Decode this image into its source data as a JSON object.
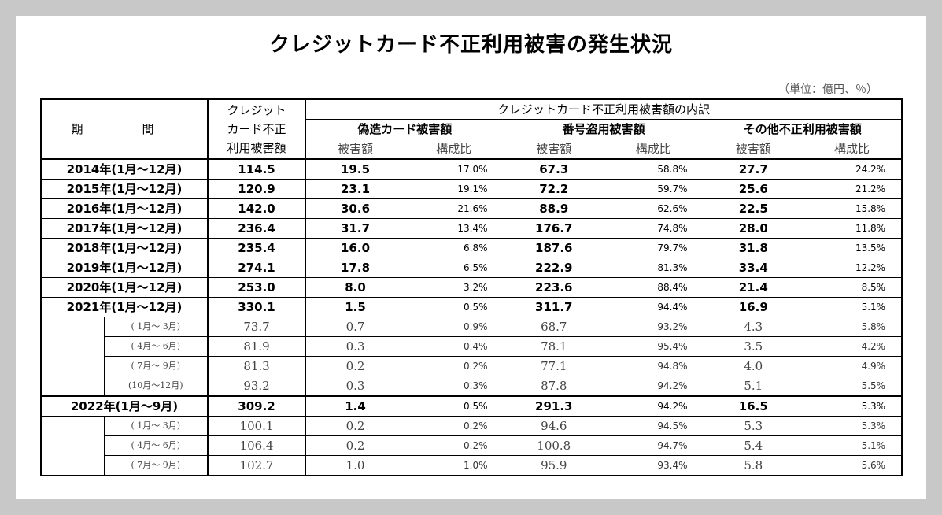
{
  "title": "クレジットカード不正利用被害の発生状況",
  "unit": "（単位：億円、％）",
  "headers": {
    "period": "期　間",
    "total_line1": "クレジット",
    "total_line2": "カード不正",
    "total_line3": "利用被害額",
    "breakdown": "クレジットカード不正利用被害額の内訳",
    "cat1": "偽造カード被害額",
    "cat2": "番号盗用被害額",
    "cat3": "その他不正利用被害額",
    "amount": "被害額",
    "ratio": "構成比"
  },
  "rows": [
    {
      "type": "year",
      "label": "2014年(1月～12月)",
      "total": "114.5",
      "a1": "19.5",
      "r1": "17.0%",
      "a2": "67.3",
      "r2": "58.8%",
      "a3": "27.7",
      "r3": "24.2%"
    },
    {
      "type": "year",
      "label": "2015年(1月～12月)",
      "total": "120.9",
      "a1": "23.1",
      "r1": "19.1%",
      "a2": "72.2",
      "r2": "59.7%",
      "a3": "25.6",
      "r3": "21.2%"
    },
    {
      "type": "year",
      "label": "2016年(1月～12月)",
      "total": "142.0",
      "a1": "30.6",
      "r1": "21.6%",
      "a2": "88.9",
      "r2": "62.6%",
      "a3": "22.5",
      "r3": "15.8%"
    },
    {
      "type": "year",
      "label": "2017年(1月～12月)",
      "total": "236.4",
      "a1": "31.7",
      "r1": "13.4%",
      "a2": "176.7",
      "r2": "74.8%",
      "a3": "28.0",
      "r3": "11.8%"
    },
    {
      "type": "year",
      "label": "2018年(1月～12月)",
      "total": "235.4",
      "a1": "16.0",
      "r1": "6.8%",
      "a2": "187.6",
      "r2": "79.7%",
      "a3": "31.8",
      "r3": "13.5%"
    },
    {
      "type": "year",
      "label": "2019年(1月～12月)",
      "total": "274.1",
      "a1": "17.8",
      "r1": "6.5%",
      "a2": "222.9",
      "r2": "81.3%",
      "a3": "33.4",
      "r3": "12.2%"
    },
    {
      "type": "year",
      "label": "2020年(1月～12月)",
      "total": "253.0",
      "a1": "8.0",
      "r1": "3.2%",
      "a2": "223.6",
      "r2": "88.4%",
      "a3": "21.4",
      "r3": "8.5%"
    },
    {
      "type": "year",
      "label": "2021年(1月～12月)",
      "total": "330.1",
      "a1": "1.5",
      "r1": "0.5%",
      "a2": "311.7",
      "r2": "94.4%",
      "a3": "16.9",
      "r3": "5.1%"
    },
    {
      "type": "q",
      "label": "( 1月～ 3月)",
      "total": "73.7",
      "a1": "0.7",
      "r1": "0.9%",
      "a2": "68.7",
      "r2": "93.2%",
      "a3": "4.3",
      "r3": "5.8%"
    },
    {
      "type": "q",
      "label": "( 4月～ 6月)",
      "total": "81.9",
      "a1": "0.3",
      "r1": "0.4%",
      "a2": "78.1",
      "r2": "95.4%",
      "a3": "3.5",
      "r3": "4.2%"
    },
    {
      "type": "q",
      "label": "( 7月～ 9月)",
      "total": "81.3",
      "a1": "0.2",
      "r1": "0.2%",
      "a2": "77.1",
      "r2": "94.8%",
      "a3": "4.0",
      "r3": "4.9%"
    },
    {
      "type": "q",
      "label": "(10月～12月)",
      "total": "93.2",
      "a1": "0.3",
      "r1": "0.3%",
      "a2": "87.8",
      "r2": "94.2%",
      "a3": "5.1",
      "r3": "5.5%"
    },
    {
      "type": "year",
      "label": "2022年(1月～9月)",
      "total": "309.2",
      "a1": "1.4",
      "r1": "0.5%",
      "a2": "291.3",
      "r2": "94.2%",
      "a3": "16.5",
      "r3": "5.3%"
    },
    {
      "type": "q",
      "label": "( 1月～ 3月)",
      "total": "100.1",
      "a1": "0.2",
      "r1": "0.2%",
      "a2": "94.6",
      "r2": "94.5%",
      "a3": "5.3",
      "r3": "5.3%"
    },
    {
      "type": "q",
      "label": "( 4月～ 6月)",
      "total": "106.4",
      "a1": "0.2",
      "r1": "0.2%",
      "a2": "100.8",
      "r2": "94.7%",
      "a3": "5.4",
      "r3": "5.1%"
    },
    {
      "type": "q",
      "label": "( 7月～ 9月)",
      "total": "102.7",
      "a1": "1.0",
      "r1": "1.0%",
      "a2": "95.9",
      "r2": "93.4%",
      "a3": "5.8",
      "r3": "5.6%"
    }
  ]
}
